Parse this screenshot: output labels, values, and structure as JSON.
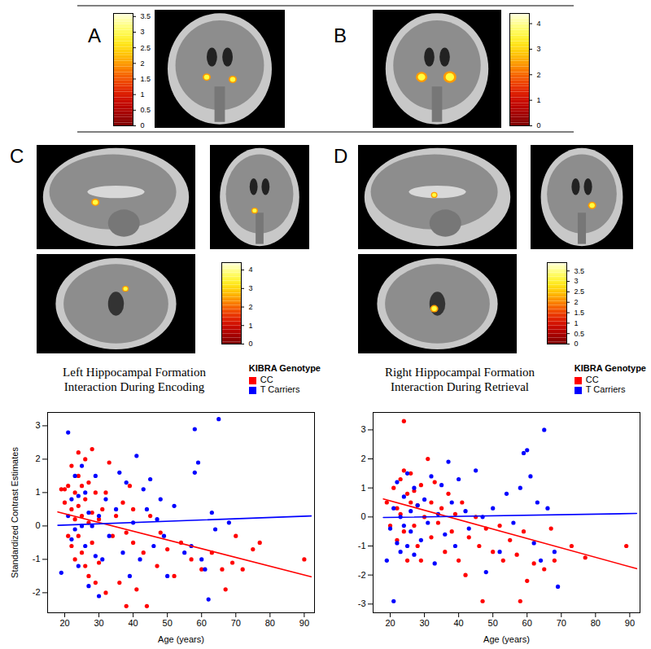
{
  "panels": [
    {
      "label": "A",
      "colorbar": {
        "range": [
          0,
          3.6
        ],
        "ticks": [
          0,
          0.5,
          1,
          1.5,
          2,
          2.5,
          3,
          3.5
        ]
      }
    },
    {
      "label": "B",
      "colorbar": {
        "range": [
          0,
          4.4
        ],
        "ticks": [
          0,
          1,
          2,
          3,
          4
        ]
      }
    },
    {
      "label": "C",
      "colorbar": {
        "range": [
          0,
          4.4
        ],
        "ticks": [
          0,
          1,
          2,
          3,
          4
        ]
      }
    },
    {
      "label": "D",
      "colorbar": {
        "range": [
          0,
          3.9
        ],
        "ticks": [
          0,
          0.5,
          1,
          1.5,
          2,
          2.5,
          3,
          3.5
        ]
      }
    }
  ],
  "chart_data": [
    {
      "type": "scatter",
      "title": "Left Hippocampal Formation\nInteraction During Encoding",
      "xlabel": "Age (years)",
      "ylabel": "Standardized Contrast Estimates",
      "xlim": [
        15,
        93
      ],
      "xticks": [
        20,
        30,
        40,
        50,
        60,
        70,
        80,
        90
      ],
      "ylim": [
        -2.6,
        3.4
      ],
      "yticks": [
        -2,
        -1,
        0,
        1,
        2,
        3
      ],
      "legend": "topright",
      "legend_title": "KIBRA Genotype",
      "series": [
        {
          "name": "CC",
          "color": "#ff0000",
          "x": [
            19,
            20,
            20,
            21,
            21,
            22,
            22,
            22,
            23,
            23,
            23,
            24,
            24,
            24,
            24,
            25,
            25,
            25,
            26,
            26,
            26,
            27,
            27,
            27,
            28,
            28,
            28,
            29,
            29,
            30,
            30,
            31,
            32,
            32,
            33,
            34,
            35,
            36,
            37,
            38,
            38,
            39,
            40,
            40,
            41,
            43,
            44,
            45,
            47,
            48,
            50,
            52,
            54,
            57,
            60,
            63,
            66,
            67,
            69,
            70,
            72,
            75,
            77,
            90
          ],
          "values": [
            1.1,
            1.1,
            0.7,
            1.2,
            -0.3,
            0.5,
            1.8,
            -0.6,
            1.0,
            0.2,
            -1.0,
            1.5,
            0.6,
            -0.3,
            2.2,
            1.2,
            -0.8,
            0.3,
            2.0,
            -1.2,
            0.8,
            -1.5,
            0.1,
            1.3,
            2.3,
            -0.5,
            0.4,
            -1.7,
            1.0,
            0.2,
            -1.1,
            0.5,
            -2.0,
            1.0,
            1.9,
            -0.3,
            0.3,
            -1.7,
            0.7,
            -0.2,
            -2.4,
            1.2,
            -0.5,
            0.5,
            -1.9,
            -0.8,
            -2.4,
            0.3,
            -1.2,
            -0.2,
            -0.7,
            -1.5,
            -0.5,
            -1.0,
            -1.3,
            -0.8,
            -1.3,
            -1.9,
            -1.1,
            -0.3,
            -1.3,
            -0.7,
            -0.5,
            -1.0
          ],
          "fit_x": [
            18,
            92
          ],
          "fit_values": [
            0.42,
            -1.52
          ]
        },
        {
          "name": "T Carriers",
          "color": "#0000ff",
          "x": [
            19,
            21,
            21,
            22,
            22,
            23,
            23,
            24,
            24,
            25,
            25,
            26,
            26,
            27,
            27,
            28,
            29,
            29,
            30,
            30,
            31,
            32,
            33,
            35,
            36,
            37,
            38,
            39,
            40,
            41,
            42,
            43,
            44,
            45,
            46,
            47,
            48,
            49,
            50,
            52,
            55,
            57,
            58,
            58,
            59,
            60,
            61,
            62,
            63,
            64,
            65,
            68
          ],
          "values": [
            -1.4,
            2.8,
            0.3,
            0.8,
            -0.4,
            1.5,
            -0.1,
            0.9,
            -1.2,
            1.8,
            0.0,
            -0.6,
            1.0,
            0.4,
            -1.8,
            0.0,
            1.5,
            -0.9,
            0.3,
            -2.1,
            -1.0,
            0.8,
            -0.3,
            0.5,
            1.6,
            -0.8,
            1.3,
            -1.5,
            0.1,
            2.1,
            -1.0,
            1.1,
            0.5,
            1.4,
            -0.6,
            0.2,
            0.8,
            -0.3,
            -1.5,
            0.6,
            -0.8,
            -0.6,
            2.9,
            1.6,
            1.9,
            -1.0,
            -1.3,
            -2.2,
            0.4,
            -0.1,
            3.2,
            0.1
          ],
          "fit_x": [
            18,
            92
          ],
          "fit_values": [
            0.02,
            0.3
          ]
        }
      ]
    },
    {
      "type": "scatter",
      "title": "Right Hippocampal Formation\nInteraction During Retrieval",
      "xlabel": "Age (years)",
      "xlim": [
        15,
        93
      ],
      "xticks": [
        20,
        30,
        40,
        50,
        60,
        70,
        80,
        90
      ],
      "ylim": [
        -3.3,
        3.6
      ],
      "yticks": [
        -3,
        -2,
        -1,
        0,
        1,
        2,
        3
      ],
      "legend": "topright",
      "legend_title": "KIBRA Genotype",
      "series": [
        {
          "name": "CC",
          "color": "#ff0000",
          "x": [
            19,
            20,
            21,
            22,
            22,
            23,
            23,
            24,
            24,
            24,
            25,
            25,
            26,
            26,
            27,
            27,
            28,
            28,
            29,
            29,
            30,
            31,
            32,
            32,
            33,
            34,
            35,
            36,
            37,
            38,
            39,
            40,
            41,
            42,
            43,
            45,
            46,
            47,
            48,
            50,
            52,
            53,
            55,
            57,
            58,
            59,
            60,
            62,
            65,
            67,
            68,
            73,
            77,
            89
          ],
          "values": [
            0.5,
            -0.3,
            1.0,
            0.3,
            -0.8,
            1.3,
            0.1,
            3.3,
            1.6,
            -0.5,
            0.8,
            -1.5,
            0.5,
            1.5,
            -0.3,
            0.9,
            -1.0,
            0.4,
            1.1,
            -1.5,
            0.0,
            2.0,
            0.5,
            -0.7,
            1.2,
            -0.2,
            0.3,
            -1.2,
            0.8,
            -0.5,
            0.1,
            -1.5,
            0.5,
            -2.0,
            -0.7,
            0.0,
            -1.0,
            -2.9,
            -0.4,
            -1.2,
            -0.3,
            -1.5,
            -0.8,
            -1.3,
            -2.9,
            -0.5,
            -2.2,
            -1.6,
            -1.8,
            -0.4,
            -1.5,
            -1.0,
            -1.4,
            -1.0
          ],
          "fit_x": [
            18,
            92
          ],
          "fit_values": [
            0.62,
            -1.78
          ]
        },
        {
          "name": "T Carriers",
          "color": "#0000ff",
          "x": [
            19,
            20,
            21,
            21,
            22,
            22,
            23,
            23,
            24,
            24,
            25,
            25,
            26,
            26,
            27,
            27,
            28,
            29,
            30,
            31,
            32,
            33,
            34,
            35,
            36,
            37,
            38,
            39,
            40,
            42,
            43,
            45,
            47,
            48,
            50,
            52,
            54,
            56,
            58,
            59,
            60,
            61,
            62,
            63,
            64,
            65,
            66,
            68,
            69
          ],
          "values": [
            -1.5,
            -0.4,
            -2.9,
            0.3,
            1.2,
            -0.9,
            0.0,
            -1.2,
            0.7,
            -0.3,
            1.5,
            -1.0,
            0.2,
            -0.5,
            1.0,
            -1.3,
            0.4,
            -0.8,
            0.6,
            -0.2,
            1.4,
            -1.6,
            0.1,
            1.1,
            -0.6,
            1.9,
            0.5,
            -1.0,
            1.3,
            0.2,
            -0.4,
            1.6,
            0.0,
            -1.9,
            0.3,
            -1.2,
            0.8,
            -0.2,
            1.0,
            2.2,
            2.3,
            1.4,
            -0.9,
            0.5,
            -1.5,
            3.0,
            0.3,
            -1.2,
            -2.4
          ],
          "fit_x": [
            18,
            92
          ],
          "fit_values": [
            -0.02,
            0.12
          ]
        }
      ]
    }
  ]
}
